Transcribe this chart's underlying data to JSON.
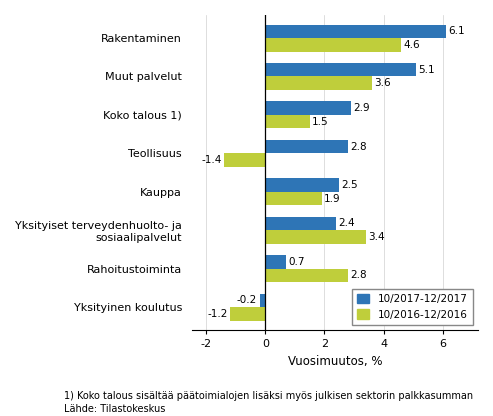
{
  "categories": [
    "Yksityinen koulutus",
    "Rahoitustoiminta",
    "Yksityiset terveydenhuolto- ja\nsosiaalipalvelut",
    "Kauppa",
    "Teollisuus",
    "Koko talous 1)",
    "Muut palvelut",
    "Rakentaminen"
  ],
  "series1_label": "10/2017-12/2017",
  "series2_label": "10/2016-12/2016",
  "series1_values": [
    -0.2,
    0.7,
    2.4,
    2.5,
    2.8,
    2.9,
    5.1,
    6.1
  ],
  "series2_values": [
    -1.2,
    2.8,
    3.4,
    1.9,
    -1.4,
    1.5,
    3.6,
    4.6
  ],
  "series1_color": "#2E75B6",
  "series2_color": "#BFCE3B",
  "xlabel": "Vuosimuutos, %",
  "xlim": [
    -2.5,
    7.2
  ],
  "xticks": [
    -2,
    0,
    2,
    4,
    6
  ],
  "footnote1": "1) Koko talous sisältää päätoimialojen lisäksi myös julkisen sektorin palkkasumman",
  "footnote2": "Lähde: Tilastokeskus",
  "background_color": "#ffffff",
  "bar_height": 0.35,
  "annotation_fontsize": 7.5,
  "label_fontsize": 8.5,
  "tick_fontsize": 8.0,
  "legend_fontsize": 7.5,
  "footnote_fontsize": 7.0
}
